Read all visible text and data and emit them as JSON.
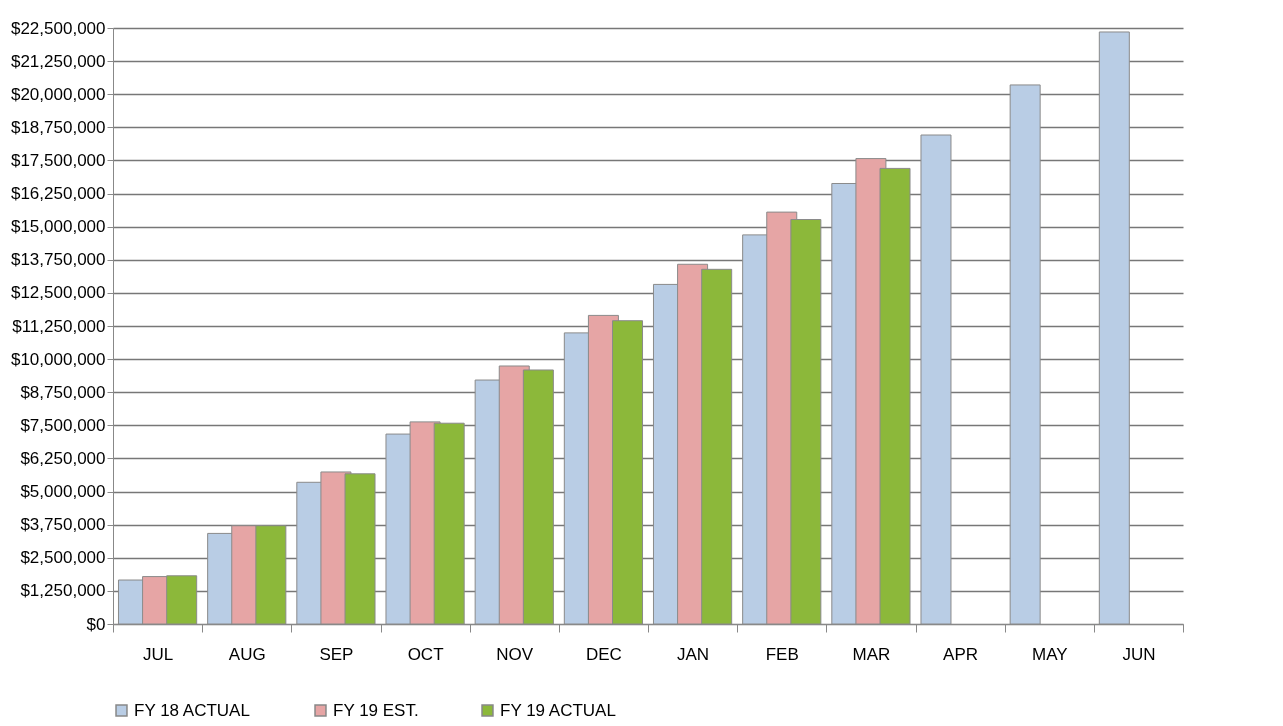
{
  "chart_data": {
    "type": "bar",
    "categories": [
      "JUL",
      "AUG",
      "SEP",
      "OCT",
      "NOV",
      "DEC",
      "JAN",
      "FEB",
      "MAR",
      "APR",
      "MAY",
      "JUN"
    ],
    "series": [
      {
        "name": "FY 18 ACTUAL",
        "color": "#b9cde5",
        "values": [
          1660000,
          3420000,
          5350000,
          7170000,
          9210000,
          10990000,
          12820000,
          14690000,
          16630000,
          18460000,
          20350000,
          22350000
        ]
      },
      {
        "name": "FY 19 EST.",
        "color": "#e6a5a5",
        "values": [
          1790000,
          3710000,
          5740000,
          7630000,
          9740000,
          11650000,
          13580000,
          15550000,
          17570000,
          null,
          null,
          null
        ]
      },
      {
        "name": "FY 19 ACTUAL",
        "color": "#8cb83a",
        "values": [
          1820000,
          3710000,
          5670000,
          7580000,
          9590000,
          11450000,
          13390000,
          15270000,
          17200000,
          null,
          null,
          null
        ]
      }
    ],
    "ylim": [
      0,
      22500000
    ],
    "yticks": [
      {
        "value": 0,
        "label": "$0"
      },
      {
        "value": 1250000,
        "label": "$1,250,000"
      },
      {
        "value": 2500000,
        "label": "$2,500,000"
      },
      {
        "value": 3750000,
        "label": "$3,750,000"
      },
      {
        "value": 5000000,
        "label": "$5,000,000"
      },
      {
        "value": 6250000,
        "label": "$6,250,000"
      },
      {
        "value": 7500000,
        "label": "$7,500,000"
      },
      {
        "value": 8750000,
        "label": "$8,750,000"
      },
      {
        "value": 10000000,
        "label": "$10,000,000"
      },
      {
        "value": 11250000,
        "label": "$11,250,000"
      },
      {
        "value": 12500000,
        "label": "$12,500,000"
      },
      {
        "value": 13750000,
        "label": "$13,750,000"
      },
      {
        "value": 15000000,
        "label": "$15,000,000"
      },
      {
        "value": 16250000,
        "label": "$16,250,000"
      },
      {
        "value": 17500000,
        "label": "$17,500,000"
      },
      {
        "value": 18750000,
        "label": "$18,750,000"
      },
      {
        "value": 20000000,
        "label": "$20,000,000"
      },
      {
        "value": 21250000,
        "label": "$21,250,000"
      },
      {
        "value": 22500000,
        "label": "$22,500,000"
      }
    ],
    "grid": "y",
    "legend": "bottom"
  }
}
